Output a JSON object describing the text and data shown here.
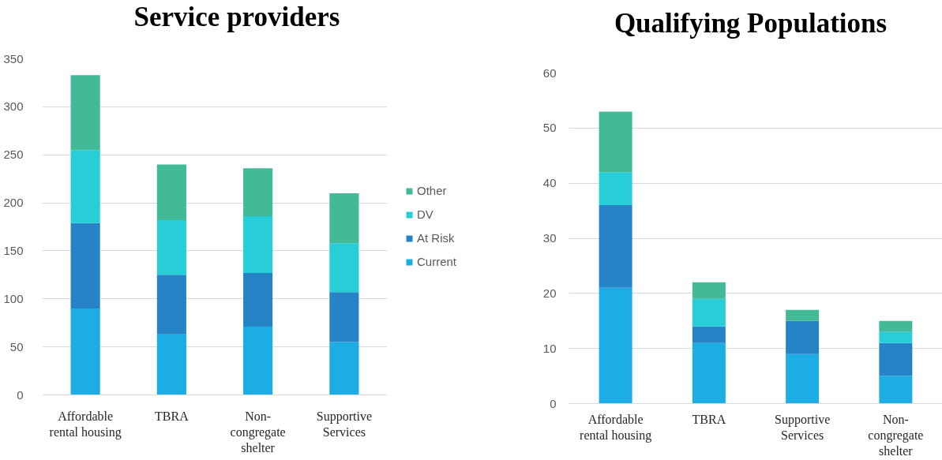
{
  "chart_data": [
    {
      "type": "bar",
      "title": "Service providers",
      "stacked": true,
      "categories": [
        "Affordable\nrental housing",
        "TBRA",
        "Non-\ncongregate\nshelter",
        "Supportive\nServices"
      ],
      "series": [
        {
          "name": "Current",
          "color": "#1cade4",
          "values": [
            90,
            63,
            71,
            55
          ]
        },
        {
          "name": "At Risk",
          "color": "#2683c6",
          "values": [
            89,
            62,
            56,
            52
          ]
        },
        {
          "name": "DV",
          "color": "#27ced7",
          "values": [
            76,
            57,
            59,
            51
          ]
        },
        {
          "name": "Other",
          "color": "#42ba97",
          "values": [
            78,
            58,
            50,
            52
          ]
        }
      ],
      "ylim": [
        0,
        350
      ],
      "yticks": [
        0,
        50,
        100,
        150,
        200,
        250,
        300,
        350
      ],
      "grid": "y",
      "legend": "right"
    },
    {
      "type": "bar",
      "title": "Qualifying Populations",
      "stacked": true,
      "categories": [
        "Affordable\nrental housing",
        "TBRA",
        "Supportive\nServices",
        "Non-\ncongregate\nshelter"
      ],
      "series": [
        {
          "color": "#1cade4",
          "values": [
            21,
            11,
            9,
            5
          ]
        },
        {
          "color": "#2683c6",
          "values": [
            15,
            3,
            6,
            6
          ]
        },
        {
          "color": "#27ced7",
          "values": [
            6,
            5,
            0,
            2
          ]
        },
        {
          "color": "#42ba97",
          "values": [
            11,
            3,
            2,
            2
          ]
        }
      ],
      "ylim": [
        0,
        60
      ],
      "yticks": [
        0,
        10,
        20,
        30,
        40,
        50,
        60
      ],
      "grid": "y"
    }
  ]
}
